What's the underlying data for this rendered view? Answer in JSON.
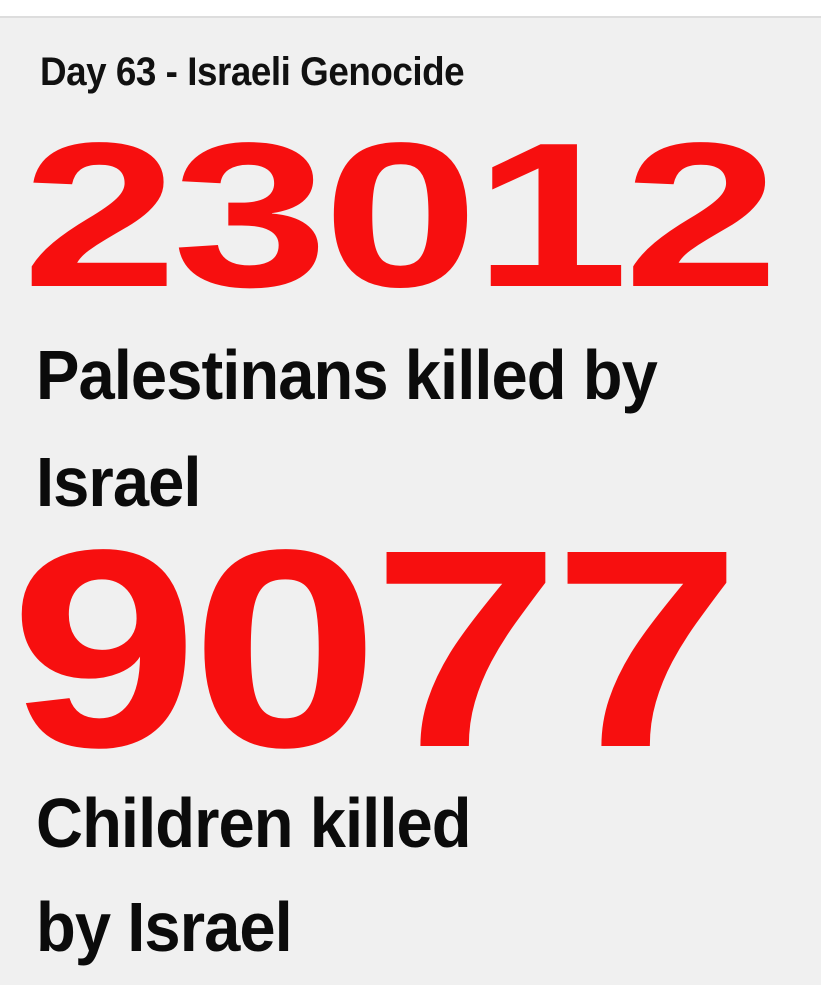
{
  "title": "Day 63 - Israeli Genocide",
  "stats": [
    {
      "number": "23012",
      "lines": [
        "Palestinans killed by",
        "Israel"
      ]
    },
    {
      "number": "9077",
      "lines": [
        "Children killed",
        "by Israel"
      ]
    }
  ],
  "colors": {
    "number": "#f70f0f",
    "text": "#0b0b0b",
    "background": "#f0f0f0"
  }
}
